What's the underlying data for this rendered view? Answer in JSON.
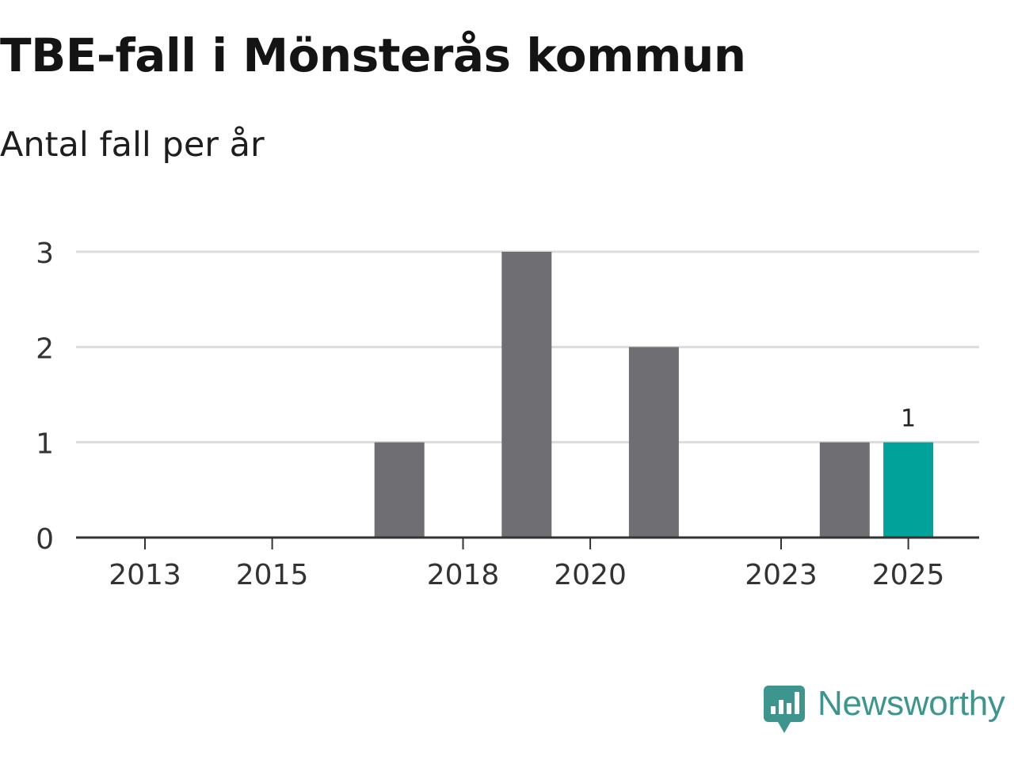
{
  "header": {
    "title": "TBE-fall i Mönsterås kommun",
    "subtitle": "Antal fall per år"
  },
  "branding": {
    "name": "Newsworthy",
    "icon": "newsworthy-logo-icon",
    "color": "#3e958e"
  },
  "colors": {
    "bar": "#6f6e73",
    "highlight": "#00a29a",
    "grid": "#dcdcdc",
    "axis": "#333333",
    "text": "#333333"
  },
  "chart_data": {
    "type": "bar",
    "title": "TBE-fall i Mönsterås kommun",
    "subtitle": "Antal fall per år",
    "xlabel": "",
    "ylabel": "",
    "categories": [
      "2013",
      "2014",
      "2015",
      "2016",
      "2017",
      "2018",
      "2019",
      "2020",
      "2021",
      "2022",
      "2023",
      "2024",
      "2025"
    ],
    "values": [
      0,
      0,
      0,
      0,
      1,
      0,
      3,
      0,
      2,
      0,
      0,
      1,
      1
    ],
    "highlight_category": "2025",
    "annotations": [
      {
        "category": "2025",
        "text": "1"
      }
    ],
    "x_tick_labels": [
      "2013",
      "2015",
      "2018",
      "2020",
      "2023",
      "2025"
    ],
    "yticks": [
      0,
      1,
      2,
      3
    ],
    "ylim": [
      0,
      3
    ],
    "grid": true,
    "legend": "none"
  }
}
